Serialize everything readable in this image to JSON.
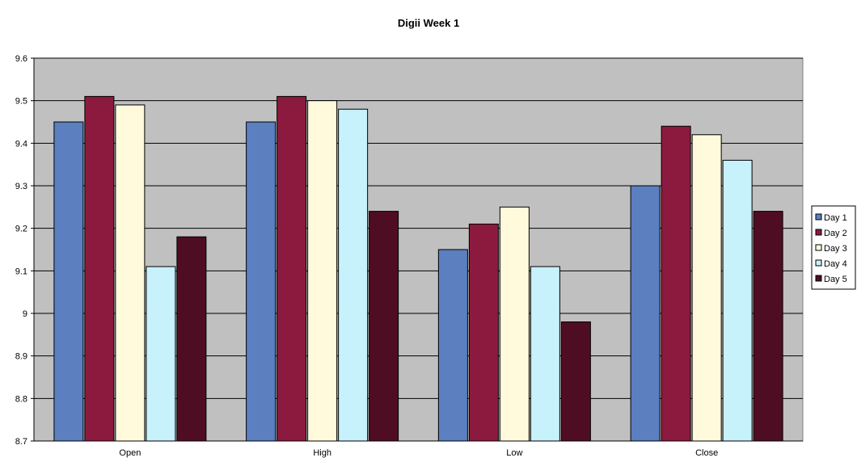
{
  "chart_data": {
    "type": "bar",
    "title": "Digii Week 1",
    "xlabel": "",
    "ylabel": "",
    "categories": [
      "Open",
      "High",
      "Low",
      "Close"
    ],
    "series": [
      {
        "name": "Day 1",
        "color": "#5b7fbf",
        "values": [
          9.45,
          9.45,
          9.15,
          9.3
        ]
      },
      {
        "name": "Day 2",
        "color": "#8c1a3f",
        "values": [
          9.51,
          9.51,
          9.21,
          9.44
        ]
      },
      {
        "name": "Day 3",
        "color": "#fffadc",
        "values": [
          9.49,
          9.5,
          9.25,
          9.42
        ]
      },
      {
        "name": "Day 4",
        "color": "#c7f1fb",
        "values": [
          9.11,
          9.48,
          9.11,
          9.36
        ]
      },
      {
        "name": "Day 5",
        "color": "#4f0d24",
        "values": [
          9.18,
          9.24,
          8.98,
          9.24
        ]
      }
    ],
    "yticks": [
      "8.7",
      "8.8",
      "8.9",
      "9",
      "9.1",
      "9.2",
      "9.3",
      "9.4",
      "9.5",
      "9.6"
    ],
    "ylim": [
      8.7,
      9.6
    ],
    "grid": true,
    "legend": "right",
    "plot_background": "#c0c0c0"
  }
}
